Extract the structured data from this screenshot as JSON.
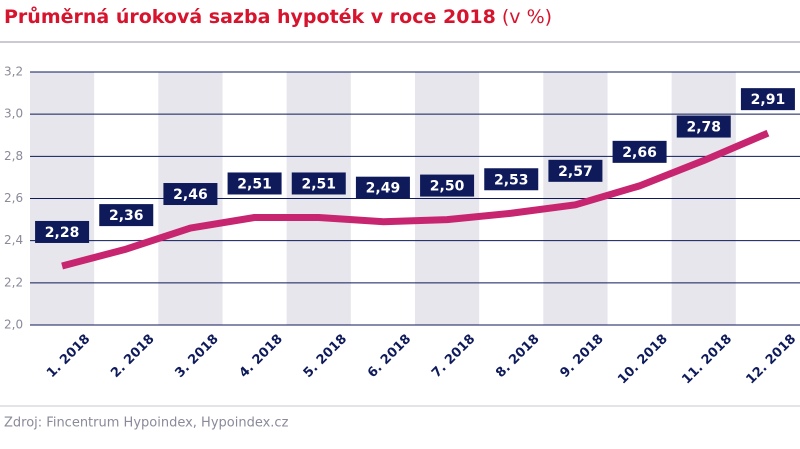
{
  "chart_data": {
    "type": "line",
    "title": "Průměrná úroková sazba hypoték v roce 2018",
    "unit": "(v %)",
    "categories": [
      "1. 2018",
      "2. 2018",
      "3. 2018",
      "4. 2018",
      "5. 2018",
      "6. 2018",
      "7. 2018",
      "8. 2018",
      "9. 2018",
      "10. 2018",
      "11. 2018",
      "12. 2018"
    ],
    "values": [
      2.28,
      2.36,
      2.46,
      2.51,
      2.51,
      2.49,
      2.5,
      2.53,
      2.57,
      2.66,
      2.78,
      2.91
    ],
    "value_labels": [
      "2,28",
      "2,36",
      "2,46",
      "2,51",
      "2,51",
      "2,49",
      "2,50",
      "2,53",
      "2,57",
      "2,66",
      "2,78",
      "2,91"
    ],
    "color": "#c7256f",
    "ylim": [
      2.0,
      3.2
    ],
    "yticks": [
      {
        "value": 2.0,
        "label": "2,0"
      },
      {
        "value": 2.2,
        "label": "2,2"
      },
      {
        "value": 2.4,
        "label": "2,4"
      },
      {
        "value": 2.6,
        "label": "2,6"
      },
      {
        "value": 2.8,
        "label": "2,8"
      },
      {
        "value": 3.0,
        "label": "3,0"
      },
      {
        "value": 3.2,
        "label": "3,2"
      }
    ],
    "grid": true,
    "source": "Zdroj: Fincentrum Hypoindex, Hypoindex.cz"
  }
}
